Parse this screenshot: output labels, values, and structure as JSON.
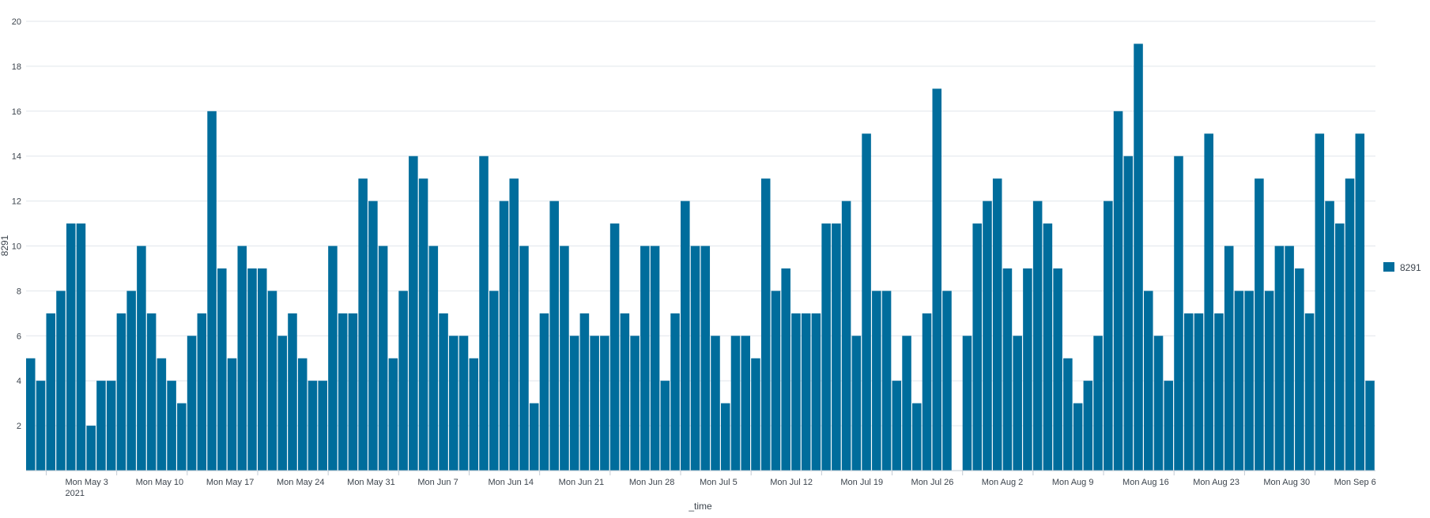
{
  "chart_data": {
    "type": "bar",
    "xlabel": "_time",
    "ylabel": "8291",
    "ylim": [
      0,
      20
    ],
    "y_ticks": [
      2,
      4,
      6,
      8,
      10,
      12,
      14,
      16,
      18,
      20
    ],
    "grid": true,
    "legend_position": "right",
    "color": "#006d9c",
    "x_start": "2021-05-01",
    "x_tick_labels": [
      {
        "date": "2021-05-03",
        "label": "Mon May 3",
        "sublabel": "2021"
      },
      {
        "date": "2021-05-10",
        "label": "Mon May 10"
      },
      {
        "date": "2021-05-17",
        "label": "Mon May 17"
      },
      {
        "date": "2021-05-24",
        "label": "Mon May 24"
      },
      {
        "date": "2021-05-31",
        "label": "Mon May 31"
      },
      {
        "date": "2021-06-07",
        "label": "Mon Jun 7"
      },
      {
        "date": "2021-06-14",
        "label": "Mon Jun 14"
      },
      {
        "date": "2021-06-21",
        "label": "Mon Jun 21"
      },
      {
        "date": "2021-06-28",
        "label": "Mon Jun 28"
      },
      {
        "date": "2021-07-05",
        "label": "Mon Jul 5"
      },
      {
        "date": "2021-07-12",
        "label": "Mon Jul 12"
      },
      {
        "date": "2021-07-19",
        "label": "Mon Jul 19"
      },
      {
        "date": "2021-07-26",
        "label": "Mon Jul 26"
      },
      {
        "date": "2021-08-02",
        "label": "Mon Aug 2"
      },
      {
        "date": "2021-08-09",
        "label": "Mon Aug 9"
      },
      {
        "date": "2021-08-16",
        "label": "Mon Aug 16"
      },
      {
        "date": "2021-08-23",
        "label": "Mon Aug 23"
      },
      {
        "date": "2021-08-30",
        "label": "Mon Aug 30"
      },
      {
        "date": "2021-09-06",
        "label": "Mon Sep 6"
      }
    ],
    "series": [
      {
        "name": "8291",
        "values": [
          5,
          4,
          7,
          8,
          11,
          11,
          2,
          4,
          4,
          7,
          8,
          10,
          7,
          5,
          4,
          3,
          6,
          7,
          16,
          9,
          5,
          10,
          9,
          9,
          8,
          6,
          7,
          5,
          4,
          4,
          10,
          7,
          7,
          13,
          12,
          10,
          5,
          8,
          14,
          13,
          10,
          7,
          6,
          6,
          5,
          14,
          8,
          12,
          13,
          10,
          3,
          7,
          12,
          10,
          6,
          7,
          6,
          6,
          11,
          7,
          6,
          10,
          10,
          4,
          7,
          12,
          10,
          10,
          6,
          3,
          6,
          6,
          5,
          13,
          8,
          9,
          7,
          7,
          7,
          11,
          11,
          12,
          6,
          15,
          8,
          8,
          4,
          6,
          3,
          7,
          17,
          8,
          0,
          6,
          11,
          12,
          13,
          9,
          6,
          9,
          12,
          11,
          9,
          5,
          3,
          4,
          6,
          12,
          16,
          14,
          19,
          8,
          6,
          4,
          14,
          7,
          7,
          15,
          7,
          10,
          8,
          8,
          13,
          8,
          10,
          10,
          9,
          7,
          15,
          12,
          11,
          13,
          15,
          4
        ]
      }
    ]
  }
}
